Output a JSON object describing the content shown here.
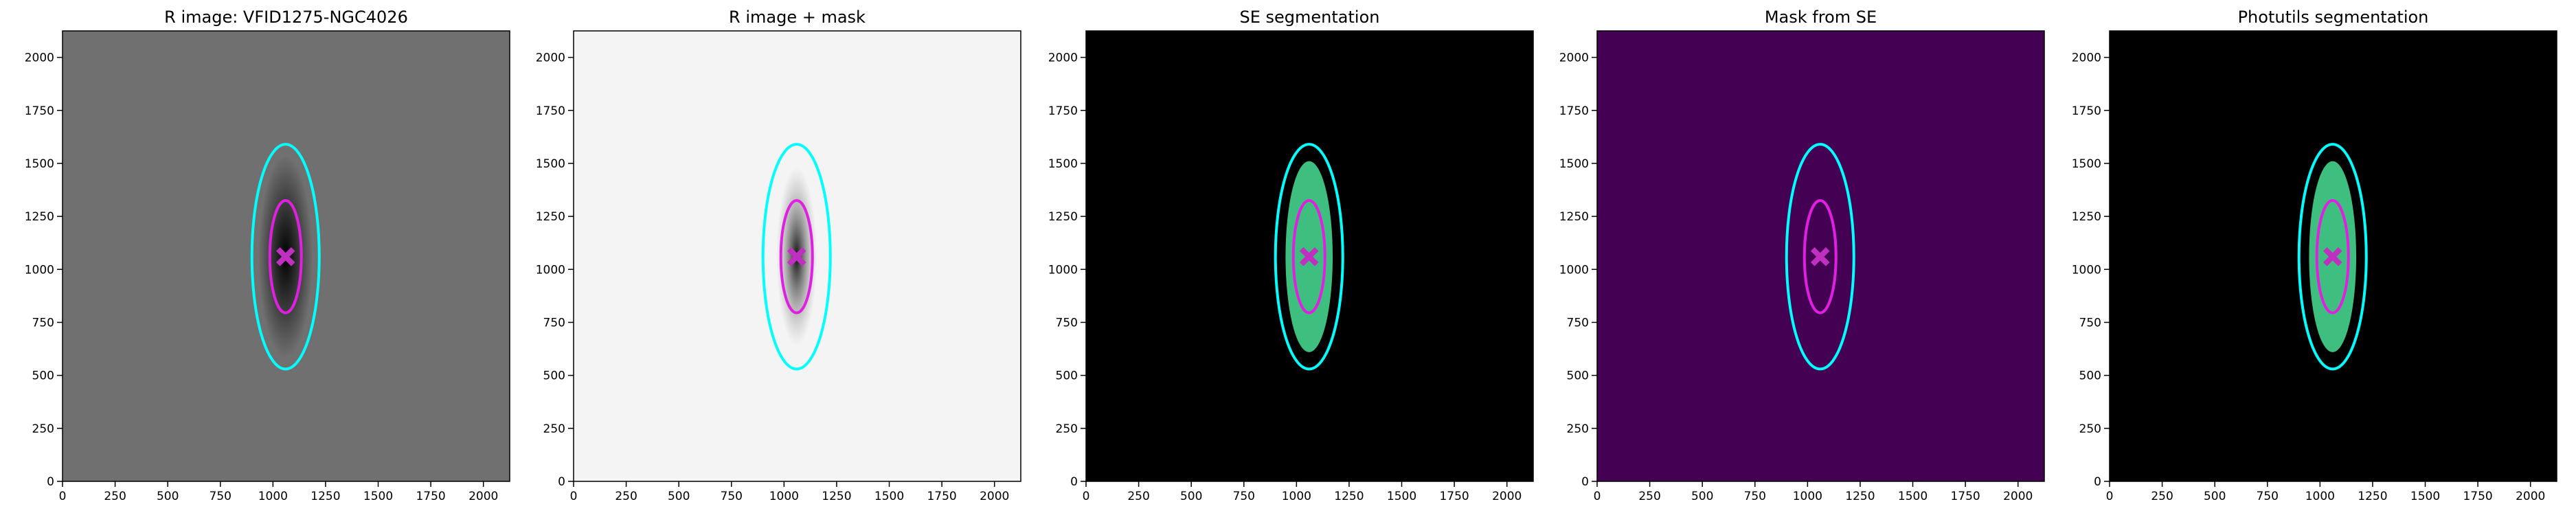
{
  "chart_data": [
    {
      "type": "image",
      "title": "R image: VFID1275-NGC4026",
      "background": "#707070",
      "xlim": [
        0,
        2125
      ],
      "ylim": [
        0,
        2125
      ],
      "xticks": [
        0,
        250,
        500,
        750,
        1000,
        1250,
        1500,
        1750,
        2000
      ],
      "yticks": [
        0,
        250,
        500,
        750,
        1000,
        1250,
        1500,
        1750,
        2000
      ],
      "ellipses": [
        {
          "cx": 1060,
          "cy": 1060,
          "rx": 160,
          "ry": 530,
          "color": "#00ffff"
        },
        {
          "cx": 1060,
          "cy": 1060,
          "rx": 75,
          "ry": 265,
          "color": "#e020e0"
        }
      ],
      "marker": {
        "x": 1060,
        "y": 1060,
        "color": "#c030c0"
      }
    },
    {
      "type": "image",
      "title": "R image + mask",
      "background": "#f4f4f4",
      "xlim": [
        0,
        2125
      ],
      "ylim": [
        0,
        2125
      ],
      "xticks": [
        0,
        250,
        500,
        750,
        1000,
        1250,
        1500,
        1750,
        2000
      ],
      "yticks": [
        0,
        250,
        500,
        750,
        1000,
        1250,
        1500,
        1750,
        2000
      ],
      "ellipses": [
        {
          "cx": 1060,
          "cy": 1060,
          "rx": 160,
          "ry": 530,
          "color": "#00ffff"
        },
        {
          "cx": 1060,
          "cy": 1060,
          "rx": 75,
          "ry": 265,
          "color": "#e020e0"
        }
      ],
      "marker": {
        "x": 1060,
        "y": 1060,
        "color": "#c030c0"
      }
    },
    {
      "type": "image",
      "title": "SE segmentation",
      "background": "#000000",
      "xlim": [
        0,
        2125
      ],
      "ylim": [
        0,
        2125
      ],
      "xticks": [
        0,
        250,
        500,
        750,
        1000,
        1250,
        1500,
        1750,
        2000
      ],
      "yticks": [
        0,
        250,
        500,
        750,
        1000,
        1250,
        1500,
        1750,
        2000
      ],
      "ellipses": [
        {
          "cx": 1060,
          "cy": 1060,
          "rx": 160,
          "ry": 530,
          "color": "#00ffff"
        },
        {
          "cx": 1060,
          "cy": 1060,
          "rx": 75,
          "ry": 265,
          "color": "#e020e0"
        }
      ],
      "marker": {
        "x": 1060,
        "y": 1060,
        "color": "#c030c0"
      }
    },
    {
      "type": "image",
      "title": "Mask from SE",
      "background": "#440154",
      "xlim": [
        0,
        2125
      ],
      "ylim": [
        0,
        2125
      ],
      "xticks": [
        0,
        250,
        500,
        750,
        1000,
        1250,
        1500,
        1750,
        2000
      ],
      "yticks": [
        0,
        250,
        500,
        750,
        1000,
        1250,
        1500,
        1750,
        2000
      ],
      "ellipses": [
        {
          "cx": 1060,
          "cy": 1060,
          "rx": 160,
          "ry": 530,
          "color": "#00ffff"
        },
        {
          "cx": 1060,
          "cy": 1060,
          "rx": 75,
          "ry": 265,
          "color": "#e020e0"
        }
      ],
      "marker": {
        "x": 1060,
        "y": 1060,
        "color": "#c030c0"
      }
    },
    {
      "type": "image",
      "title": "Photutils segmentation",
      "background": "#000000",
      "xlim": [
        0,
        2125
      ],
      "ylim": [
        0,
        2125
      ],
      "xticks": [
        0,
        250,
        500,
        750,
        1000,
        1250,
        1500,
        1750,
        2000
      ],
      "yticks": [
        0,
        250,
        500,
        750,
        1000,
        1250,
        1500,
        1750,
        2000
      ],
      "ellipses": [
        {
          "cx": 1060,
          "cy": 1060,
          "rx": 160,
          "ry": 530,
          "color": "#00ffff"
        },
        {
          "cx": 1060,
          "cy": 1060,
          "rx": 75,
          "ry": 265,
          "color": "#e020e0"
        }
      ],
      "marker": {
        "x": 1060,
        "y": 1060,
        "color": "#c030c0"
      }
    }
  ]
}
